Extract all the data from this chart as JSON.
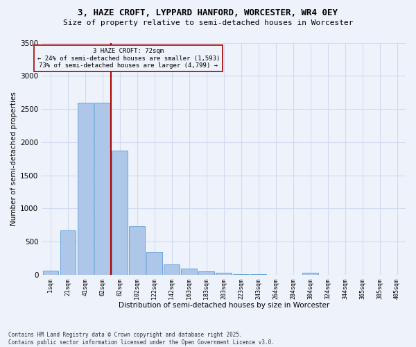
{
  "title_line1": "3, HAZE CROFT, LYPPARD HANFORD, WORCESTER, WR4 0EY",
  "title_line2": "Size of property relative to semi-detached houses in Worcester",
  "xlabel": "Distribution of semi-detached houses by size in Worcester",
  "ylabel": "Number of semi-detached properties",
  "footnote": "Contains HM Land Registry data © Crown copyright and database right 2025.\nContains public sector information licensed under the Open Government Licence v3.0.",
  "bar_labels": [
    "1sqm",
    "21sqm",
    "41sqm",
    "62sqm",
    "82sqm",
    "102sqm",
    "122sqm",
    "142sqm",
    "163sqm",
    "183sqm",
    "203sqm",
    "223sqm",
    "243sqm",
    "264sqm",
    "284sqm",
    "304sqm",
    "324sqm",
    "344sqm",
    "365sqm",
    "385sqm",
    "405sqm"
  ],
  "bar_values": [
    60,
    670,
    2590,
    2590,
    1870,
    730,
    350,
    155,
    90,
    55,
    35,
    12,
    5,
    0,
    0,
    30,
    0,
    0,
    0,
    0,
    0
  ],
  "bar_color": "#aec6e8",
  "bar_edgecolor": "#5b9bd5",
  "background_color": "#eef3fb",
  "grid_color": "#d0daf0",
  "property_label": "3 HAZE CROFT: 72sqm",
  "pct_smaller": 24,
  "count_smaller": 1593,
  "pct_larger": 73,
  "count_larger": 4799,
  "vline_color": "#aa0000",
  "annotation_box_edgecolor": "#aa0000",
  "ylim": [
    0,
    3500
  ],
  "yticks": [
    0,
    500,
    1000,
    1500,
    2000,
    2500,
    3000,
    3500
  ],
  "vline_x_bin": 3.5
}
